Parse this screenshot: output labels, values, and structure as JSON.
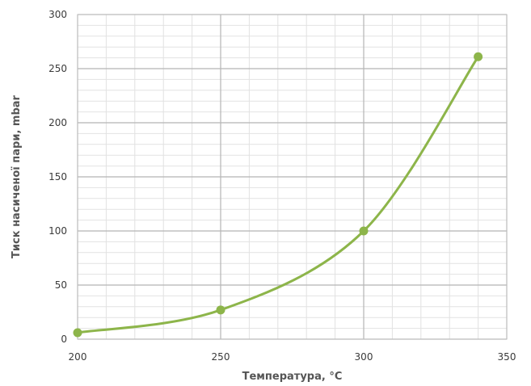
{
  "chart_data": {
    "type": "line",
    "title": "",
    "xlabel": "Температура, °C",
    "ylabel": "Тиск насиченої пари, mbar",
    "xlim": [
      200,
      350
    ],
    "ylim": [
      0,
      300
    ],
    "x_ticks": [
      200,
      250,
      300,
      350
    ],
    "y_ticks": [
      0,
      50,
      100,
      150,
      200,
      250,
      300
    ],
    "x_minor_step": 10,
    "y_minor_step": 10,
    "grid": true,
    "legend": "none",
    "series": [
      {
        "color": "#8db54a",
        "points": [
          {
            "x": 200,
            "y": 6
          },
          {
            "x": 250,
            "y": 27
          },
          {
            "x": 300,
            "y": 100
          },
          {
            "x": 340,
            "y": 261
          }
        ]
      }
    ]
  }
}
